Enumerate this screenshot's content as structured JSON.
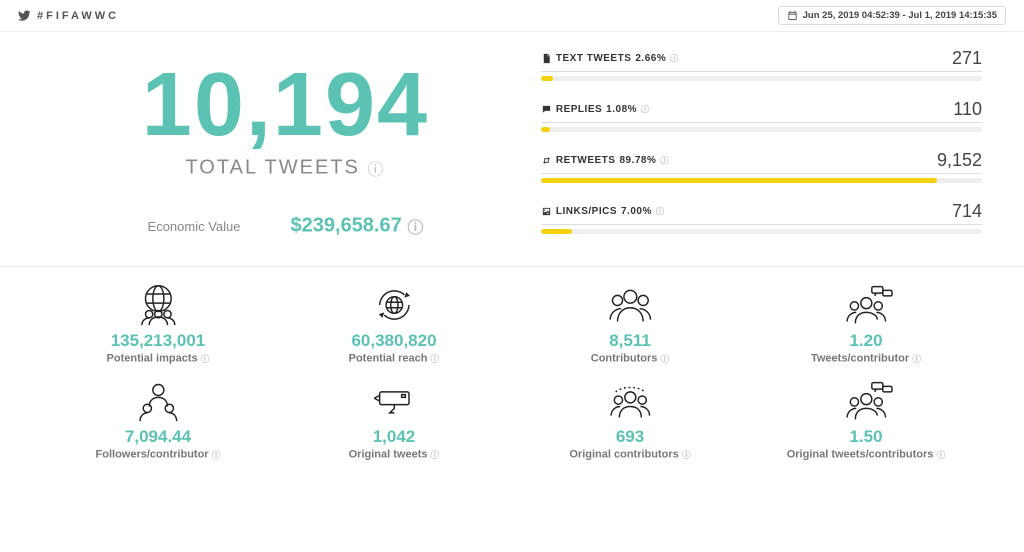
{
  "header": {
    "hashtag": "#FIFAWWC",
    "date_range": "Jun 25, 2019 04:52:39 - Jul 1, 2019 14:15:35"
  },
  "colors": {
    "accent": "#5cc2b3",
    "bar": "#f4d30e",
    "track": "#eeeeee",
    "text_muted": "#888888"
  },
  "main": {
    "total_tweets_value": "10,194",
    "total_tweets_label": "TOTAL TWEETS",
    "economic_label": "Economic Value",
    "economic_value": "$239,658.67"
  },
  "breakdown": [
    {
      "icon": "doc",
      "label": "TEXT TWEETS",
      "pct": "2.66%",
      "pct_num": 2.66,
      "value": "271"
    },
    {
      "icon": "reply",
      "label": "REPLIES",
      "pct": "1.08%",
      "pct_num": 1.08,
      "value": "110"
    },
    {
      "icon": "retweet",
      "label": "RETWEETS",
      "pct": "89.78%",
      "pct_num": 89.78,
      "value": "9,152"
    },
    {
      "icon": "image",
      "label": "LINKS/PICS",
      "pct": "7.00%",
      "pct_num": 7.0,
      "value": "714"
    }
  ],
  "metrics": [
    {
      "icon": "globe-people",
      "value": "135,213,001",
      "label": "Potential impacts"
    },
    {
      "icon": "globe-cycle",
      "value": "60,380,820",
      "label": "Potential reach"
    },
    {
      "icon": "people",
      "value": "8,511",
      "label": "Contributors"
    },
    {
      "icon": "people-chat",
      "value": "1.20",
      "label": "Tweets/contributor"
    },
    {
      "icon": "people-one",
      "value": "7,094.44",
      "label": "Followers/contributor"
    },
    {
      "icon": "send",
      "value": "1,042",
      "label": "Original tweets"
    },
    {
      "icon": "people-ring",
      "value": "693",
      "label": "Original contributors"
    },
    {
      "icon": "people-chat",
      "value": "1.50",
      "label": "Original tweets/contributors"
    }
  ]
}
